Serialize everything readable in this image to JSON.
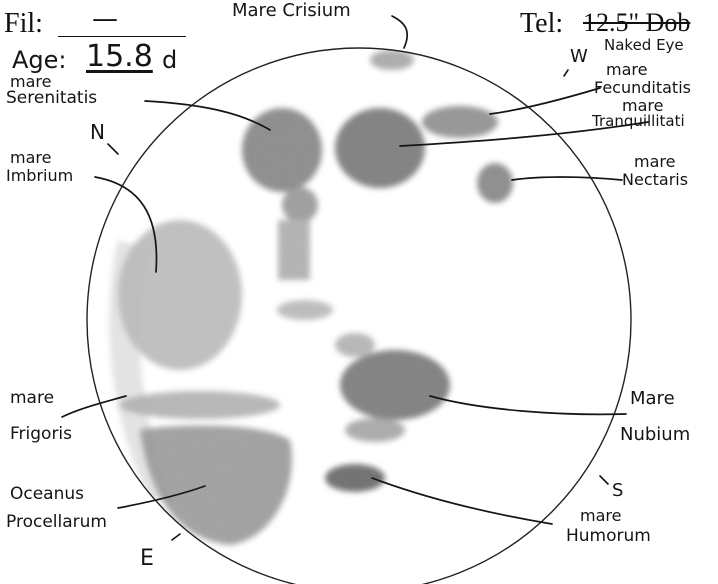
{
  "form": {
    "filter_label": "Fil:",
    "filter_value": "—",
    "age_label": "Age:",
    "age_value": "15.8",
    "age_unit": "d",
    "telescope_label": "Tel:",
    "telescope_struck": "12.5\" Dob",
    "telescope_value": "Naked Eye"
  },
  "directions": {
    "north": "N",
    "south": "S",
    "east": "E",
    "west": "W"
  },
  "maria": [
    {
      "id": "crisium",
      "lines": [
        "Mare Crisium"
      ]
    },
    {
      "id": "serenitatis",
      "lines": [
        "mare",
        "Serenitatis"
      ]
    },
    {
      "id": "imbrium",
      "lines": [
        "mare",
        "Imbrium"
      ]
    },
    {
      "id": "fecunditatis",
      "lines": [
        "mare",
        "Fecunditatis"
      ]
    },
    {
      "id": "tranquillitatis",
      "lines": [
        "mare",
        "Tranquillitati"
      ]
    },
    {
      "id": "nectaris",
      "lines": [
        "mare",
        "Nectaris"
      ]
    },
    {
      "id": "frigoris",
      "lines": [
        "mare",
        "Frigoris"
      ]
    },
    {
      "id": "nubium",
      "lines": [
        "Mare",
        "Nubium"
      ]
    },
    {
      "id": "procellarum",
      "lines": [
        "Oceanus",
        "Procellarum"
      ]
    },
    {
      "id": "humorum",
      "lines": [
        "mare",
        "Humorum"
      ]
    }
  ],
  "colors": {
    "ink": "#151515",
    "shade": "#6d6d6d",
    "shade_light": "#a9a9a9"
  }
}
